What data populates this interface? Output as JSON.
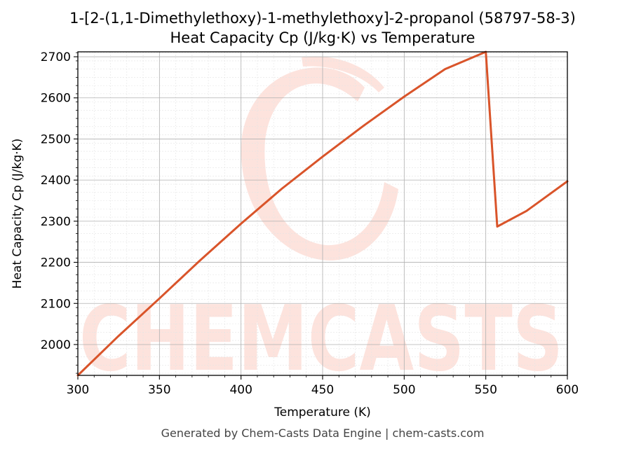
{
  "chart_data": {
    "type": "line",
    "title": "1-[2-(1,1-Dimethylethoxy)-1-methylethoxy]-2-propanol (58797-58-3)",
    "subtitle": "Heat Capacity Cp (J/kg·K) vs Temperature",
    "xlabel": "Temperature (K)",
    "ylabel": "Heat Capacity Cp (J/kg·K)",
    "xlim": [
      300,
      600
    ],
    "ylim": [
      1925,
      2712
    ],
    "x_ticks": [
      "300",
      "350",
      "400",
      "450",
      "500",
      "550",
      "600"
    ],
    "y_ticks": [
      "2000",
      "2100",
      "2200",
      "2300",
      "2400",
      "2500",
      "2600",
      "2700"
    ],
    "grid": true,
    "series": [
      {
        "color": "#d9542a",
        "x": [
          300,
          325,
          350,
          375,
          400,
          425,
          450,
          475,
          500,
          525,
          550,
          557,
          575,
          600
        ],
        "y": [
          1925,
          2021,
          2112,
          2205,
          2294,
          2379,
          2457,
          2532,
          2603,
          2670,
          2712,
          2287,
          2325,
          2397
        ]
      }
    ]
  },
  "watermark": "CHEMCASTS",
  "footer": "Generated by Chem-Casts Data Engine | chem-casts.com"
}
